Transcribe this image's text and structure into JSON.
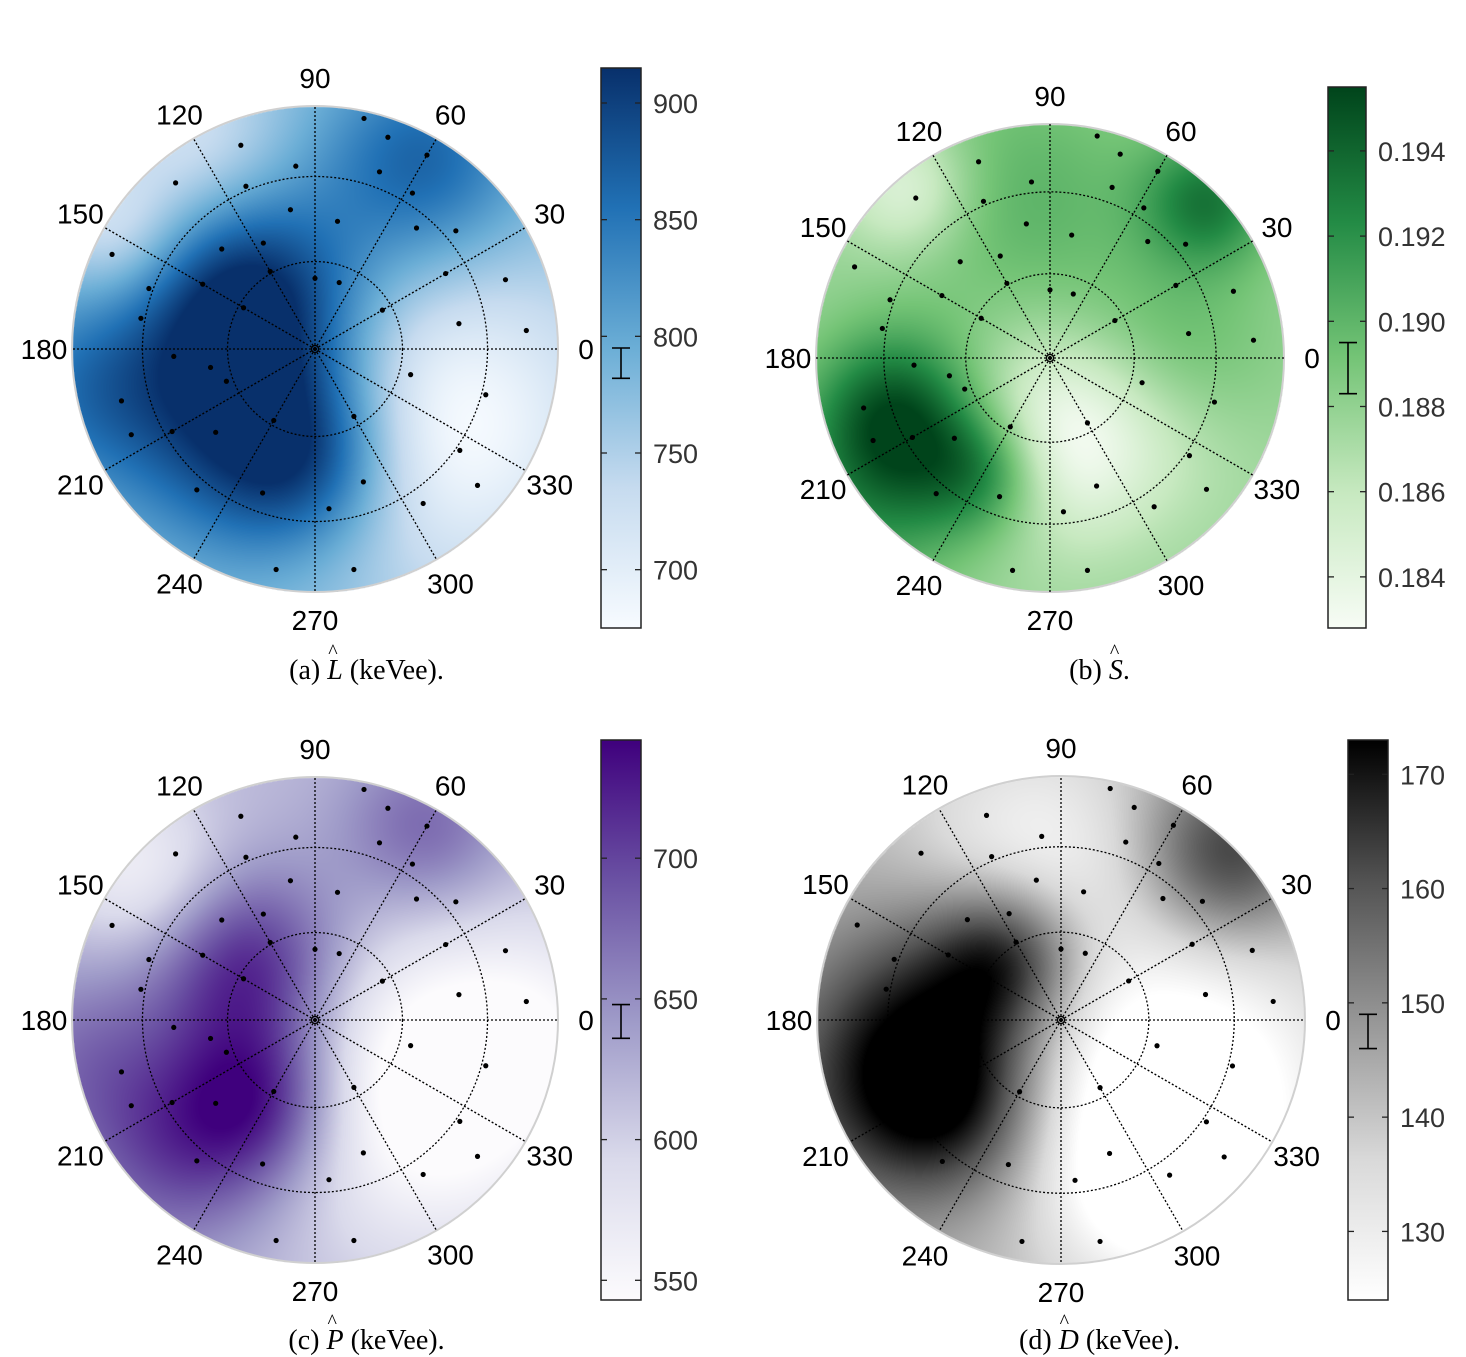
{
  "figure": {
    "panels": [
      {
        "id": "a",
        "caption_prefix": "(a)",
        "caption_symbol": "L",
        "caption_suffix": "(keVee).",
        "colormap": [
          "#f7fbff",
          "#c6dbef",
          "#6baed6",
          "#2171b5",
          "#08306b"
        ],
        "colorbar_ticks": [
          700,
          750,
          800,
          850,
          900
        ],
        "colorbar_range": [
          675,
          915
        ],
        "errorbar": [
          782,
          795
        ]
      },
      {
        "id": "b",
        "caption_prefix": "(b)",
        "caption_symbol": "S",
        "caption_suffix": ".",
        "colormap": [
          "#f7fcf5",
          "#c7e9c0",
          "#74c476",
          "#238b45",
          "#00441b"
        ],
        "colorbar_ticks": [
          "0.184",
          "0.186",
          "0.188",
          "0.190",
          "0.192",
          "0.194"
        ],
        "colorbar_range": [
          0.1828,
          0.1955
        ],
        "errorbar": [
          0.1883,
          0.1895
        ]
      },
      {
        "id": "c",
        "caption_prefix": "(c)",
        "caption_symbol": "P",
        "caption_suffix": "(keVee).",
        "colormap": [
          "#fcfbfd",
          "#dadaeb",
          "#9e9ac8",
          "#6a51a3",
          "#3f007d"
        ],
        "colorbar_ticks": [
          550,
          600,
          650,
          700
        ],
        "colorbar_range": [
          543,
          742
        ],
        "errorbar": [
          636,
          648
        ]
      },
      {
        "id": "d",
        "caption_prefix": "(d)",
        "caption_symbol": "D",
        "caption_suffix": "(keVee).",
        "colormap": [
          "#ffffff",
          "#d9d9d9",
          "#969696",
          "#525252",
          "#000000"
        ],
        "colorbar_ticks": [
          130,
          140,
          150,
          160,
          170
        ],
        "colorbar_range": [
          124,
          173
        ],
        "errorbar": [
          146,
          149
        ]
      }
    ]
  },
  "chart_data": [
    {
      "type": "heatmap",
      "variable": "L",
      "angular_ticks": [
        "0",
        "30",
        "60",
        "90",
        "120",
        "150",
        "180",
        "210",
        "240",
        "270",
        "300",
        "330"
      ],
      "colorbar_ticks": [
        700,
        750,
        800,
        850,
        900
      ]
    },
    {
      "type": "heatmap",
      "variable": "S",
      "angular_ticks": [
        "0",
        "30",
        "60",
        "90",
        "120",
        "150",
        "180",
        "210",
        "240",
        "270",
        "300",
        "330"
      ],
      "colorbar_ticks": [
        "0.184",
        "0.186",
        "0.188",
        "0.190",
        "0.192",
        "0.194"
      ]
    },
    {
      "type": "heatmap",
      "variable": "P",
      "angular_ticks": [
        "0",
        "30",
        "60",
        "90",
        "120",
        "150",
        "180",
        "210",
        "240",
        "270",
        "300",
        "330"
      ],
      "colorbar_ticks": [
        550,
        600,
        650,
        700
      ]
    },
    {
      "type": "heatmap",
      "variable": "D",
      "angular_ticks": [
        "0",
        "30",
        "60",
        "90",
        "120",
        "150",
        "180",
        "210",
        "240",
        "270",
        "300",
        "330"
      ],
      "colorbar_ticks": [
        130,
        140,
        150,
        160,
        170
      ]
    }
  ]
}
